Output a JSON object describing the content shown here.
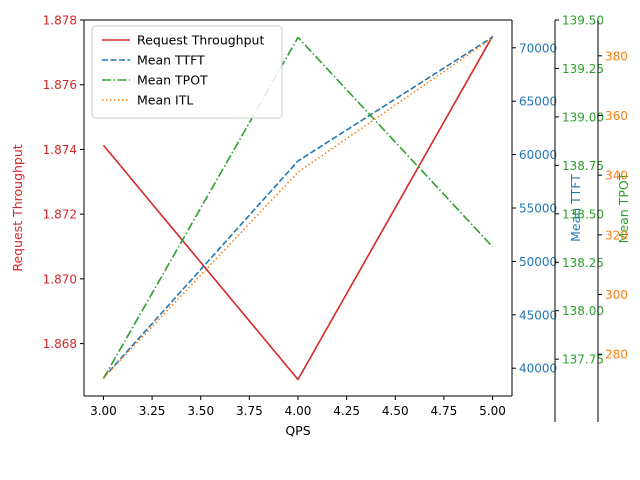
{
  "chart_data": {
    "type": "line",
    "title": "",
    "xlabel": "QPS",
    "x": [
      3.0,
      4.0,
      5.0
    ],
    "xlim": [
      2.9,
      5.1
    ],
    "xticks": [
      "3.00",
      "3.25",
      "3.50",
      "3.75",
      "4.00",
      "4.25",
      "4.50",
      "4.75",
      "5.00"
    ],
    "xtick_values": [
      3.0,
      3.25,
      3.5,
      3.75,
      4.0,
      4.25,
      4.5,
      4.75,
      5.0
    ],
    "series": [
      {
        "name": "Request Throughput",
        "axis": "Request Throughput",
        "color": "#d62728",
        "style": "solid",
        "values": [
          1.87413,
          1.86689,
          1.8775
        ],
        "ylim": [
          1.86638,
          1.878
        ],
        "yticks": [
          "1.868",
          "1.870",
          "1.872",
          "1.874",
          "1.876",
          "1.878"
        ],
        "ytick_values": [
          1.868,
          1.87,
          1.872,
          1.874,
          1.876,
          1.878
        ]
      },
      {
        "name": "Mean TTFT",
        "axis": "Mean TTFT",
        "color": "#1f77b4",
        "style": "dashed",
        "values": [
          39100,
          59400,
          71000
        ],
        "ylim": [
          37400,
          72600
        ],
        "yticks": [
          "40000",
          "45000",
          "50000",
          "55000",
          "60000",
          "65000",
          "70000"
        ],
        "ytick_values": [
          40000,
          45000,
          50000,
          55000,
          60000,
          65000,
          70000
        ]
      },
      {
        "name": "Mean TPOT",
        "axis": "Mean TPOT",
        "color": "#2ca02c",
        "style": "dashdot",
        "values": [
          137.65,
          139.41,
          138.33
        ],
        "ylim": [
          137.56,
          139.5
        ],
        "yticks": [
          "137.75",
          "138.00",
          "138.25",
          "138.50",
          "138.75",
          "139.00",
          "139.25",
          "139.50"
        ],
        "ytick_values": [
          137.75,
          138.0,
          138.25,
          138.5,
          138.75,
          139.0,
          139.25,
          139.5
        ]
      },
      {
        "name": "Mean ITL",
        "axis": "Mean ITL",
        "color": "#ff7f0e",
        "style": "dotted",
        "values": [
          272,
          341,
          386
        ],
        "ylim": [
          266,
          392
        ],
        "yticks": [
          "280",
          "300",
          "320",
          "340",
          "360",
          "380"
        ],
        "ytick_values": [
          280,
          300,
          320,
          340,
          360,
          380
        ]
      }
    ],
    "legend": {
      "location": "top-left",
      "entries": [
        "Request Throughput",
        "Mean TTFT",
        "Mean TPOT",
        "Mean ITL"
      ]
    }
  }
}
